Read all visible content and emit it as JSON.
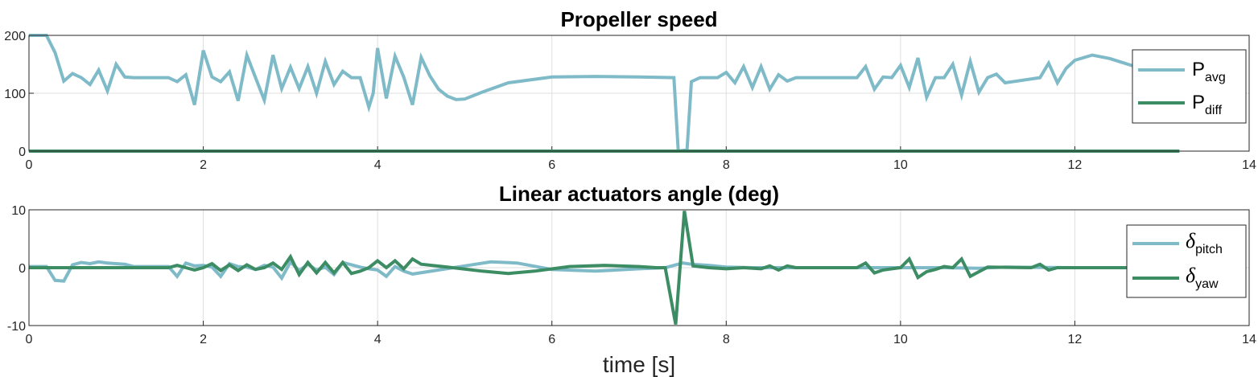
{
  "colors": {
    "series_a": "#7fbac8",
    "series_b": "#3c8c64"
  },
  "xlabel": "time [s]",
  "chart_data": [
    {
      "type": "line",
      "title": "Propeller speed",
      "xlim": [
        0,
        14
      ],
      "ylim": [
        0,
        200
      ],
      "xticks": [
        "0",
        "2",
        "4",
        "6",
        "8",
        "10",
        "12",
        "14"
      ],
      "yticks": [
        "0",
        "100",
        "200"
      ],
      "legend": "right",
      "grid": true,
      "series": [
        {
          "name": "P",
          "sub": "avg",
          "color": "#7fbac8",
          "x": [
            0,
            0.2,
            0.3,
            0.4,
            0.5,
            0.6,
            0.7,
            0.8,
            0.9,
            1.0,
            1.1,
            1.2,
            1.6,
            1.7,
            1.8,
            1.9,
            2.0,
            2.1,
            2.2,
            2.3,
            2.4,
            2.5,
            2.6,
            2.7,
            2.8,
            2.9,
            3.0,
            3.1,
            3.2,
            3.3,
            3.4,
            3.5,
            3.6,
            3.7,
            3.8,
            3.9,
            3.95,
            4.0,
            4.1,
            4.2,
            4.3,
            4.4,
            4.5,
            4.6,
            4.7,
            4.8,
            4.9,
            5.0,
            5.2,
            5.5,
            6.0,
            6.5,
            7.0,
            7.4,
            7.45,
            7.55,
            7.6,
            7.7,
            7.9,
            8.0,
            8.1,
            8.2,
            8.3,
            8.4,
            8.5,
            8.6,
            8.7,
            8.8,
            8.9,
            9.5,
            9.6,
            9.7,
            9.8,
            9.9,
            10.0,
            10.1,
            10.2,
            10.3,
            10.4,
            10.5,
            10.6,
            10.7,
            10.8,
            10.9,
            11.0,
            11.1,
            11.2,
            11.6,
            11.7,
            11.8,
            11.9,
            12.0,
            12.2,
            12.4,
            12.8
          ],
          "y": [
            200,
            200,
            170,
            121,
            134,
            127,
            115,
            140,
            104,
            150,
            128,
            127,
            127,
            120,
            132,
            80,
            174,
            128,
            120,
            137,
            87,
            166,
            127,
            88,
            166,
            108,
            145,
            108,
            146,
            100,
            155,
            115,
            138,
            127,
            127,
            76,
            100,
            178,
            91,
            164,
            128,
            80,
            162,
            130,
            107,
            95,
            89,
            90,
            102,
            118,
            128,
            129,
            128,
            127,
            0,
            2,
            120,
            127,
            127,
            136,
            118,
            146,
            110,
            146,
            107,
            132,
            121,
            127,
            127,
            127,
            146,
            107,
            128,
            127,
            148,
            110,
            161,
            93,
            127,
            127,
            150,
            97,
            155,
            102,
            127,
            133,
            118,
            127,
            152,
            118,
            143,
            157,
            166,
            160,
            141
          ]
        },
        {
          "name": "P",
          "sub": "diff",
          "color": "#3c8c64",
          "x": [
            0,
            13.2
          ],
          "y": [
            0,
            0
          ]
        }
      ]
    },
    {
      "type": "line",
      "title": "Linear actuators angle (deg)",
      "xlim": [
        0,
        14
      ],
      "ylim": [
        -10,
        10
      ],
      "xticks": [
        "0",
        "2",
        "4",
        "6",
        "8",
        "10",
        "12",
        "14"
      ],
      "yticks": [
        "-10",
        "0",
        "10"
      ],
      "legend": "right",
      "grid": true,
      "series": [
        {
          "name": "δ",
          "sub": "pitch",
          "color": "#7fbac8",
          "x": [
            0,
            0.2,
            0.3,
            0.4,
            0.5,
            0.6,
            0.7,
            0.8,
            0.9,
            1.0,
            1.1,
            1.2,
            1.6,
            1.7,
            1.8,
            1.9,
            2.0,
            2.1,
            2.2,
            2.3,
            2.4,
            2.5,
            2.6,
            2.7,
            2.8,
            2.9,
            3.0,
            3.1,
            3.2,
            3.3,
            3.4,
            3.5,
            3.6,
            3.7,
            3.8,
            3.9,
            4.0,
            4.1,
            4.2,
            4.3,
            4.4,
            4.7,
            5.0,
            5.3,
            5.6,
            6.0,
            6.5,
            7.0,
            7.3,
            7.5,
            7.6,
            7.8,
            8.0,
            8.3,
            8.6,
            9.0,
            9.5,
            10.0,
            10.5,
            10.9,
            11.2,
            12.0,
            13.2
          ],
          "y": [
            0.2,
            0.2,
            -2.2,
            -2.3,
            0.5,
            0.9,
            0.7,
            1.0,
            0.8,
            0.7,
            0.6,
            0.2,
            0.2,
            -1.5,
            0.8,
            0.3,
            0.4,
            0.1,
            -1.5,
            0.7,
            0.2,
            0.1,
            -0.3,
            0.4,
            0.1,
            -1.8,
            1.0,
            -0.5,
            0.6,
            -0.4,
            0.1,
            -1.2,
            0.9,
            0.5,
            0.1,
            -0.2,
            -0.4,
            -1.5,
            0.2,
            -0.6,
            -1.1,
            -0.4,
            0.3,
            1.0,
            0.8,
            -0.3,
            -0.6,
            -0.2,
            0,
            0.8,
            0.6,
            0.4,
            0.1,
            0,
            0,
            0,
            0,
            0,
            0,
            -0.1,
            0.1,
            0,
            0
          ]
        },
        {
          "name": "δ",
          "sub": "yaw",
          "color": "#3c8c64",
          "x": [
            0,
            1.6,
            1.7,
            1.8,
            1.9,
            2.0,
            2.1,
            2.2,
            2.3,
            2.4,
            2.5,
            2.6,
            2.7,
            2.8,
            2.9,
            3.0,
            3.1,
            3.2,
            3.3,
            3.4,
            3.5,
            3.6,
            3.7,
            3.8,
            3.9,
            4.0,
            4.1,
            4.2,
            4.3,
            4.4,
            4.5,
            4.8,
            5.2,
            5.5,
            5.8,
            6.2,
            6.6,
            7.0,
            7.2,
            7.3,
            7.42,
            7.52,
            7.62,
            7.8,
            8.0,
            8.2,
            8.4,
            8.5,
            8.6,
            8.7,
            8.8,
            9.0,
            9.5,
            9.6,
            9.7,
            9.8,
            9.9,
            10.0,
            10.1,
            10.2,
            10.3,
            10.4,
            10.5,
            10.6,
            10.7,
            10.8,
            10.9,
            11.0,
            11.5,
            11.6,
            11.7,
            11.8,
            12.0,
            12.5,
            13.2
          ],
          "y": [
            0,
            0,
            0.4,
            0,
            -0.4,
            0,
            0.7,
            -0.5,
            0.5,
            -0.5,
            0.5,
            -0.3,
            0,
            0.8,
            -0.3,
            1.9,
            -1.2,
            0.9,
            -0.9,
            0.9,
            -0.9,
            0.9,
            -1.0,
            -0.6,
            0,
            1.2,
            0,
            1.2,
            -0.2,
            1.5,
            0.6,
            0.1,
            -0.6,
            -1.0,
            -0.6,
            0.2,
            0.4,
            0.2,
            0,
            0,
            -9.8,
            9.8,
            0.3,
            0,
            -0.2,
            0,
            -0.2,
            0.3,
            -0.4,
            0.3,
            0,
            0,
            0,
            0.8,
            -0.9,
            -0.4,
            -0.2,
            0,
            1.5,
            -1.7,
            -0.7,
            -0.3,
            0.2,
            0,
            1.5,
            -1.5,
            -0.7,
            0.1,
            0,
            0.6,
            -0.4,
            0,
            0,
            0,
            0
          ]
        }
      ]
    }
  ]
}
